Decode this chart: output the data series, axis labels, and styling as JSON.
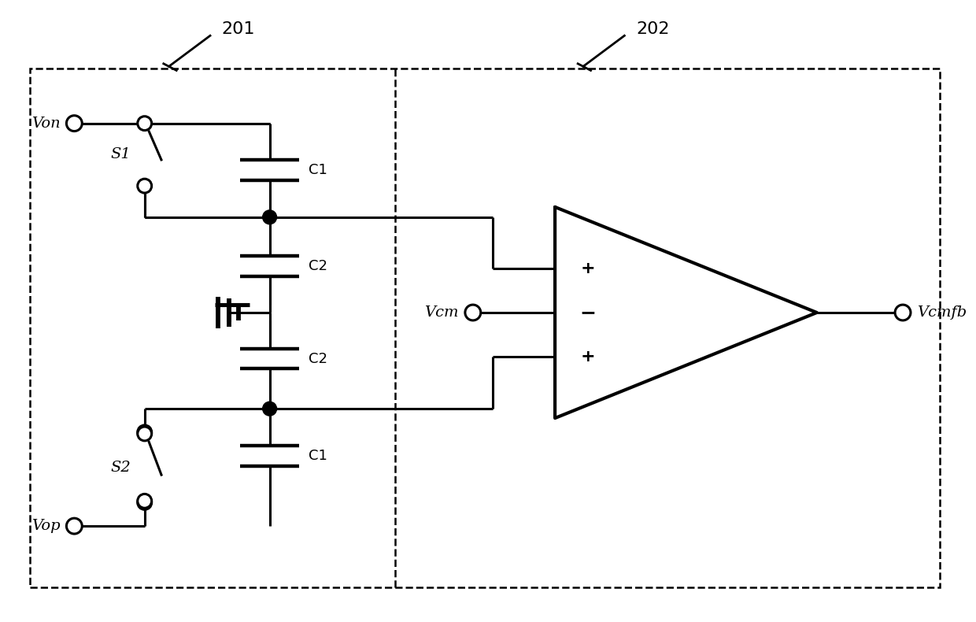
{
  "bg_color": "#ffffff",
  "line_color": "#000000",
  "line_width": 2.2,
  "box1_label": "201",
  "box2_label": "202",
  "Von_label": "Von",
  "Vop_label": "Vop",
  "Vcm_label": "Vcm",
  "Vcmfb_label": "Vcmfb",
  "S1_label": "S1",
  "S2_label": "S2",
  "C1_label": "C1",
  "C2_label": "C2",
  "plus_label": "+",
  "minus_label": "−",
  "figsize": [
    12.4,
    7.9
  ],
  "dpi": 100
}
